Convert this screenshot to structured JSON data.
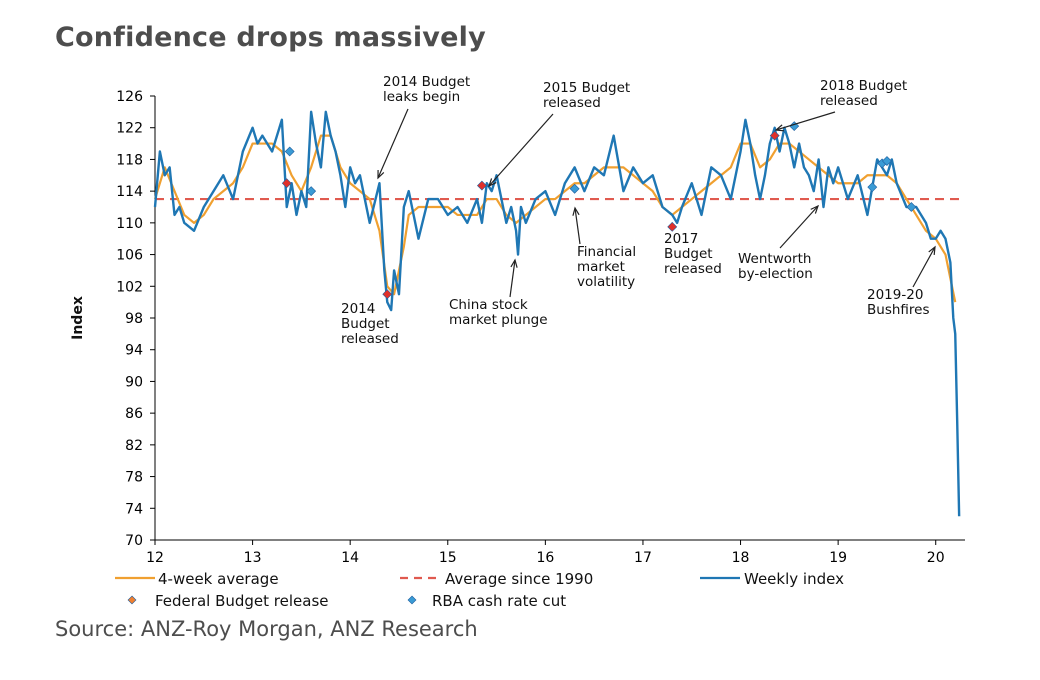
{
  "title": "Confidence drops massively",
  "source": "Source: ANZ-Roy Morgan, ANZ Research",
  "colors": {
    "weekly": "#1f77b4",
    "avg4": "#f0a030",
    "avg1990": "#e05a4f",
    "budget": "#f08030",
    "rba": "#3a9bd5",
    "budget_marker": "#e0302a"
  },
  "chart_data": {
    "type": "line",
    "title": "Confidence drops massively",
    "xlabel": "",
    "ylabel": "Index",
    "xlim": [
      12,
      20.3
    ],
    "ylim": [
      70,
      126
    ],
    "x_ticks": [
      12,
      13,
      14,
      15,
      16,
      17,
      18,
      19,
      20
    ],
    "x_tick_labels": [
      "12",
      "13",
      "14",
      "15",
      "16",
      "17",
      "18",
      "19",
      "20"
    ],
    "y_ticks": [
      70,
      74,
      78,
      82,
      86,
      90,
      94,
      98,
      102,
      106,
      110,
      114,
      118,
      122,
      126
    ],
    "y_tick_labels": [
      "70",
      "74",
      "78",
      "82",
      "86",
      "90",
      "94",
      "98",
      "102",
      "106",
      "110",
      "114",
      "118",
      "122",
      "126"
    ],
    "grid": false,
    "legend_position": "bottom",
    "reference_line": {
      "name": "Average since 1990",
      "y": 113
    },
    "series": [
      {
        "name": "Weekly index",
        "x": [
          12.0,
          12.05,
          12.1,
          12.15,
          12.2,
          12.25,
          12.3,
          12.4,
          12.5,
          12.6,
          12.7,
          12.8,
          12.9,
          13.0,
          13.05,
          13.1,
          13.2,
          13.3,
          13.35,
          13.4,
          13.45,
          13.5,
          13.55,
          13.6,
          13.65,
          13.7,
          13.75,
          13.8,
          13.85,
          13.9,
          13.95,
          14.0,
          14.05,
          14.1,
          14.15,
          14.2,
          14.3,
          14.35,
          14.38,
          14.42,
          14.45,
          14.5,
          14.55,
          14.6,
          14.7,
          14.8,
          14.9,
          15.0,
          15.1,
          15.2,
          15.3,
          15.35,
          15.4,
          15.45,
          15.5,
          15.6,
          15.65,
          15.7,
          15.72,
          15.75,
          15.8,
          15.9,
          16.0,
          16.1,
          16.2,
          16.3,
          16.4,
          16.5,
          16.6,
          16.7,
          16.8,
          16.9,
          17.0,
          17.1,
          17.2,
          17.3,
          17.35,
          17.4,
          17.5,
          17.6,
          17.7,
          17.8,
          17.9,
          18.0,
          18.05,
          18.1,
          18.15,
          18.2,
          18.25,
          18.3,
          18.35,
          18.4,
          18.45,
          18.5,
          18.55,
          18.6,
          18.65,
          18.7,
          18.75,
          18.8,
          18.85,
          18.9,
          18.95,
          19.0,
          19.1,
          19.2,
          19.3,
          19.4,
          19.5,
          19.55,
          19.6,
          19.7,
          19.8,
          19.9,
          19.95,
          20.0,
          20.05,
          20.1,
          20.15,
          20.18,
          20.2,
          20.22,
          20.24
        ],
        "y": [
          112,
          119,
          116,
          117,
          111,
          112,
          110,
          109,
          112,
          114,
          116,
          113,
          119,
          122,
          120,
          121,
          119,
          123,
          112,
          115,
          111,
          114,
          112,
          124,
          120,
          117,
          124,
          121,
          119,
          116,
          112,
          117,
          115,
          116,
          113,
          110,
          115,
          104,
          100,
          99,
          104,
          101,
          112,
          114,
          108,
          113,
          113,
          111,
          112,
          110,
          113,
          110,
          115,
          114,
          116,
          110,
          112,
          109,
          106,
          112,
          110,
          113,
          114,
          111,
          115,
          117,
          114,
          117,
          116,
          121,
          114,
          117,
          115,
          116,
          112,
          111,
          110,
          112,
          115,
          111,
          117,
          116,
          113,
          119,
          123,
          120,
          116,
          113,
          116,
          120,
          122,
          119,
          122,
          120,
          117,
          120,
          117,
          116,
          114,
          118,
          112,
          117,
          115,
          117,
          113,
          116,
          111,
          118,
          116,
          118,
          115,
          112,
          112,
          110,
          108,
          108,
          109,
          108,
          105,
          98,
          96,
          85,
          73
        ]
      },
      {
        "name": "4-week average",
        "x": [
          12.0,
          12.1,
          12.2,
          12.3,
          12.4,
          12.5,
          12.6,
          12.7,
          12.8,
          12.9,
          13.0,
          13.1,
          13.2,
          13.3,
          13.4,
          13.5,
          13.6,
          13.7,
          13.8,
          13.9,
          14.0,
          14.1,
          14.2,
          14.3,
          14.38,
          14.45,
          14.55,
          14.6,
          14.7,
          14.8,
          14.9,
          15.0,
          15.1,
          15.2,
          15.3,
          15.4,
          15.5,
          15.6,
          15.7,
          15.8,
          15.9,
          16.0,
          16.1,
          16.2,
          16.3,
          16.4,
          16.5,
          16.6,
          16.7,
          16.8,
          16.9,
          17.0,
          17.1,
          17.2,
          17.3,
          17.4,
          17.5,
          17.6,
          17.7,
          17.8,
          17.9,
          18.0,
          18.1,
          18.2,
          18.3,
          18.4,
          18.5,
          18.6,
          18.7,
          18.8,
          18.9,
          19.0,
          19.1,
          19.2,
          19.3,
          19.4,
          19.5,
          19.6,
          19.7,
          19.8,
          19.9,
          20.0,
          20.1,
          20.15,
          20.2
        ],
        "y": [
          113,
          117,
          114,
          111,
          110,
          111,
          113,
          114,
          115,
          117,
          120,
          120,
          120,
          119,
          116,
          114,
          117,
          121,
          121,
          117,
          115,
          114,
          113,
          109,
          102,
          101,
          107,
          111,
          112,
          112,
          112,
          112,
          111,
          111,
          111,
          113,
          113,
          111,
          110,
          111,
          112,
          113,
          113,
          114,
          115,
          115,
          116,
          117,
          117,
          117,
          116,
          115,
          114,
          112,
          111,
          112,
          113,
          114,
          115,
          116,
          117,
          120,
          120,
          117,
          118,
          120,
          120,
          119,
          118,
          117,
          116,
          115,
          115,
          115,
          116,
          116,
          116,
          115,
          113,
          111,
          109,
          108,
          106,
          103,
          100
        ]
      }
    ],
    "markers": [
      {
        "name": "Federal Budget release",
        "points": [
          [
            13.35,
            115
          ],
          [
            14.38,
            101
          ],
          [
            15.35,
            114.7
          ],
          [
            17.3,
            109.5
          ],
          [
            18.35,
            121
          ]
        ]
      },
      {
        "name": "RBA cash rate cut",
        "points": [
          [
            13.38,
            119
          ],
          [
            13.6,
            114
          ],
          [
            16.3,
            114.3
          ],
          [
            18.55,
            122.2
          ],
          [
            19.35,
            114.5
          ],
          [
            19.45,
            117.5
          ],
          [
            19.5,
            117.8
          ],
          [
            19.75,
            112
          ]
        ]
      }
    ],
    "annotations": [
      {
        "lines": [
          "2014 Budget",
          "leaks begin"
        ]
      },
      {
        "lines": [
          "2015 Budget",
          "released"
        ]
      },
      {
        "lines": [
          "2018 Budget",
          "released"
        ]
      },
      {
        "lines": [
          "2014",
          "Budget",
          "released"
        ]
      },
      {
        "lines": [
          "China stock",
          "market plunge"
        ]
      },
      {
        "lines": [
          "Financial",
          "market",
          "volatility"
        ]
      },
      {
        "lines": [
          "2017",
          "Budget",
          "released"
        ]
      },
      {
        "lines": [
          "Wentworth",
          "by-election"
        ]
      },
      {
        "lines": [
          "2019-20",
          "Bushfires"
        ]
      }
    ],
    "legend": [
      {
        "name": "4-week average",
        "symbol": "line"
      },
      {
        "name": "Average since 1990",
        "symbol": "dash"
      },
      {
        "name": "Weekly index",
        "symbol": "line"
      },
      {
        "name": "Federal Budget release",
        "symbol": "diamond"
      },
      {
        "name": "RBA cash rate cut",
        "symbol": "diamond"
      }
    ]
  }
}
